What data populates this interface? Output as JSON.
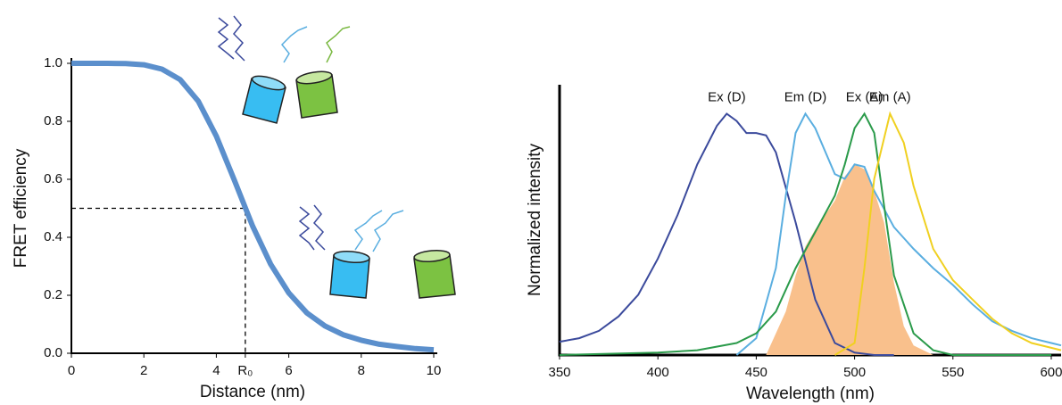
{
  "chart_data": [
    {
      "type": "line",
      "x_label": "Distance (nm)",
      "y_label": "FRET efficiency",
      "xlim": [
        0,
        10
      ],
      "ylim": [
        0,
        1
      ],
      "xticks": [
        0,
        2,
        4,
        {
          "value": 4.8,
          "label": "R₀"
        },
        6,
        8,
        10
      ],
      "yticks": [
        {
          "value": 0,
          "label": "0.0"
        },
        0.2,
        0.4,
        0.6,
        0.8,
        {
          "value": 1,
          "label": "1.0"
        }
      ],
      "guide_y": 0.5,
      "color": "#5b8fcc",
      "x": [
        0,
        0.5,
        1,
        1.5,
        2,
        2.5,
        3,
        3.5,
        4,
        4.5,
        5,
        5.5,
        6,
        6.5,
        7,
        7.5,
        8,
        8.5,
        9,
        9.5,
        10
      ],
      "values": [
        1,
        1,
        1,
        0.999,
        0.995,
        0.98,
        0.944,
        0.87,
        0.749,
        0.596,
        0.439,
        0.307,
        0.208,
        0.139,
        0.094,
        0.064,
        0.045,
        0.031,
        0.023,
        0.016,
        0.012
      ]
    },
    {
      "type": "line",
      "x_label": "Wavelength (nm)",
      "y_label": "Normalized intensity",
      "xlim": [
        350,
        605
      ],
      "ylim": [
        0,
        1.12
      ],
      "xticks": [
        350,
        400,
        450,
        500,
        550,
        600
      ],
      "fill": {
        "color": "#f9c08c",
        "x": [
          455,
          465,
          470,
          475,
          480,
          490,
          495,
          500,
          505,
          510,
          515,
          520,
          525,
          530,
          540
        ],
        "values": [
          0,
          0.18,
          0.33,
          0.45,
          0.52,
          0.64,
          0.74,
          0.79,
          0.77,
          0.68,
          0.55,
          0.3,
          0.12,
          0.04,
          0
        ]
      },
      "series": [
        {
          "name": "Ex (D)",
          "color": "#3b4a9c",
          "x": [
            350,
            360,
            370,
            380,
            390,
            400,
            410,
            420,
            430,
            435,
            440,
            445,
            450,
            455,
            460,
            470,
            480,
            490,
            500,
            510,
            520
          ],
          "values": [
            0.055,
            0.07,
            0.1,
            0.16,
            0.25,
            0.4,
            0.58,
            0.79,
            0.95,
            1,
            0.97,
            0.92,
            0.92,
            0.91,
            0.84,
            0.55,
            0.23,
            0.05,
            0.01,
            0,
            0
          ]
        },
        {
          "name": "Em (D)",
          "color": "#5aaee0",
          "x": [
            440,
            450,
            460,
            465,
            470,
            475,
            480,
            490,
            495,
            500,
            505,
            510,
            520,
            530,
            540,
            550,
            560,
            570,
            580,
            590,
            600,
            605
          ],
          "values": [
            0,
            0.07,
            0.36,
            0.66,
            0.92,
            1,
            0.94,
            0.75,
            0.73,
            0.79,
            0.78,
            0.68,
            0.53,
            0.44,
            0.36,
            0.29,
            0.21,
            0.14,
            0.1,
            0.07,
            0.05,
            0.04
          ]
        },
        {
          "name": "Ex (A)",
          "color": "#2a9a4a",
          "x": [
            350,
            400,
            420,
            440,
            450,
            460,
            470,
            480,
            490,
            495,
            500,
            505,
            510,
            515,
            520,
            530,
            540,
            550,
            600
          ],
          "values": [
            0,
            0.01,
            0.02,
            0.05,
            0.09,
            0.18,
            0.36,
            0.51,
            0.66,
            0.79,
            0.94,
            1,
            0.92,
            0.62,
            0.33,
            0.09,
            0.02,
            0,
            0
          ]
        },
        {
          "name": "Em (A)",
          "color": "#f0d020",
          "x": [
            490,
            500,
            505,
            510,
            518,
            525,
            530,
            540,
            550,
            560,
            570,
            580,
            590,
            600,
            605
          ],
          "values": [
            0,
            0.05,
            0.36,
            0.73,
            1,
            0.88,
            0.7,
            0.44,
            0.31,
            0.23,
            0.15,
            0.09,
            0.05,
            0.03,
            0.02
          ]
        }
      ]
    }
  ]
}
